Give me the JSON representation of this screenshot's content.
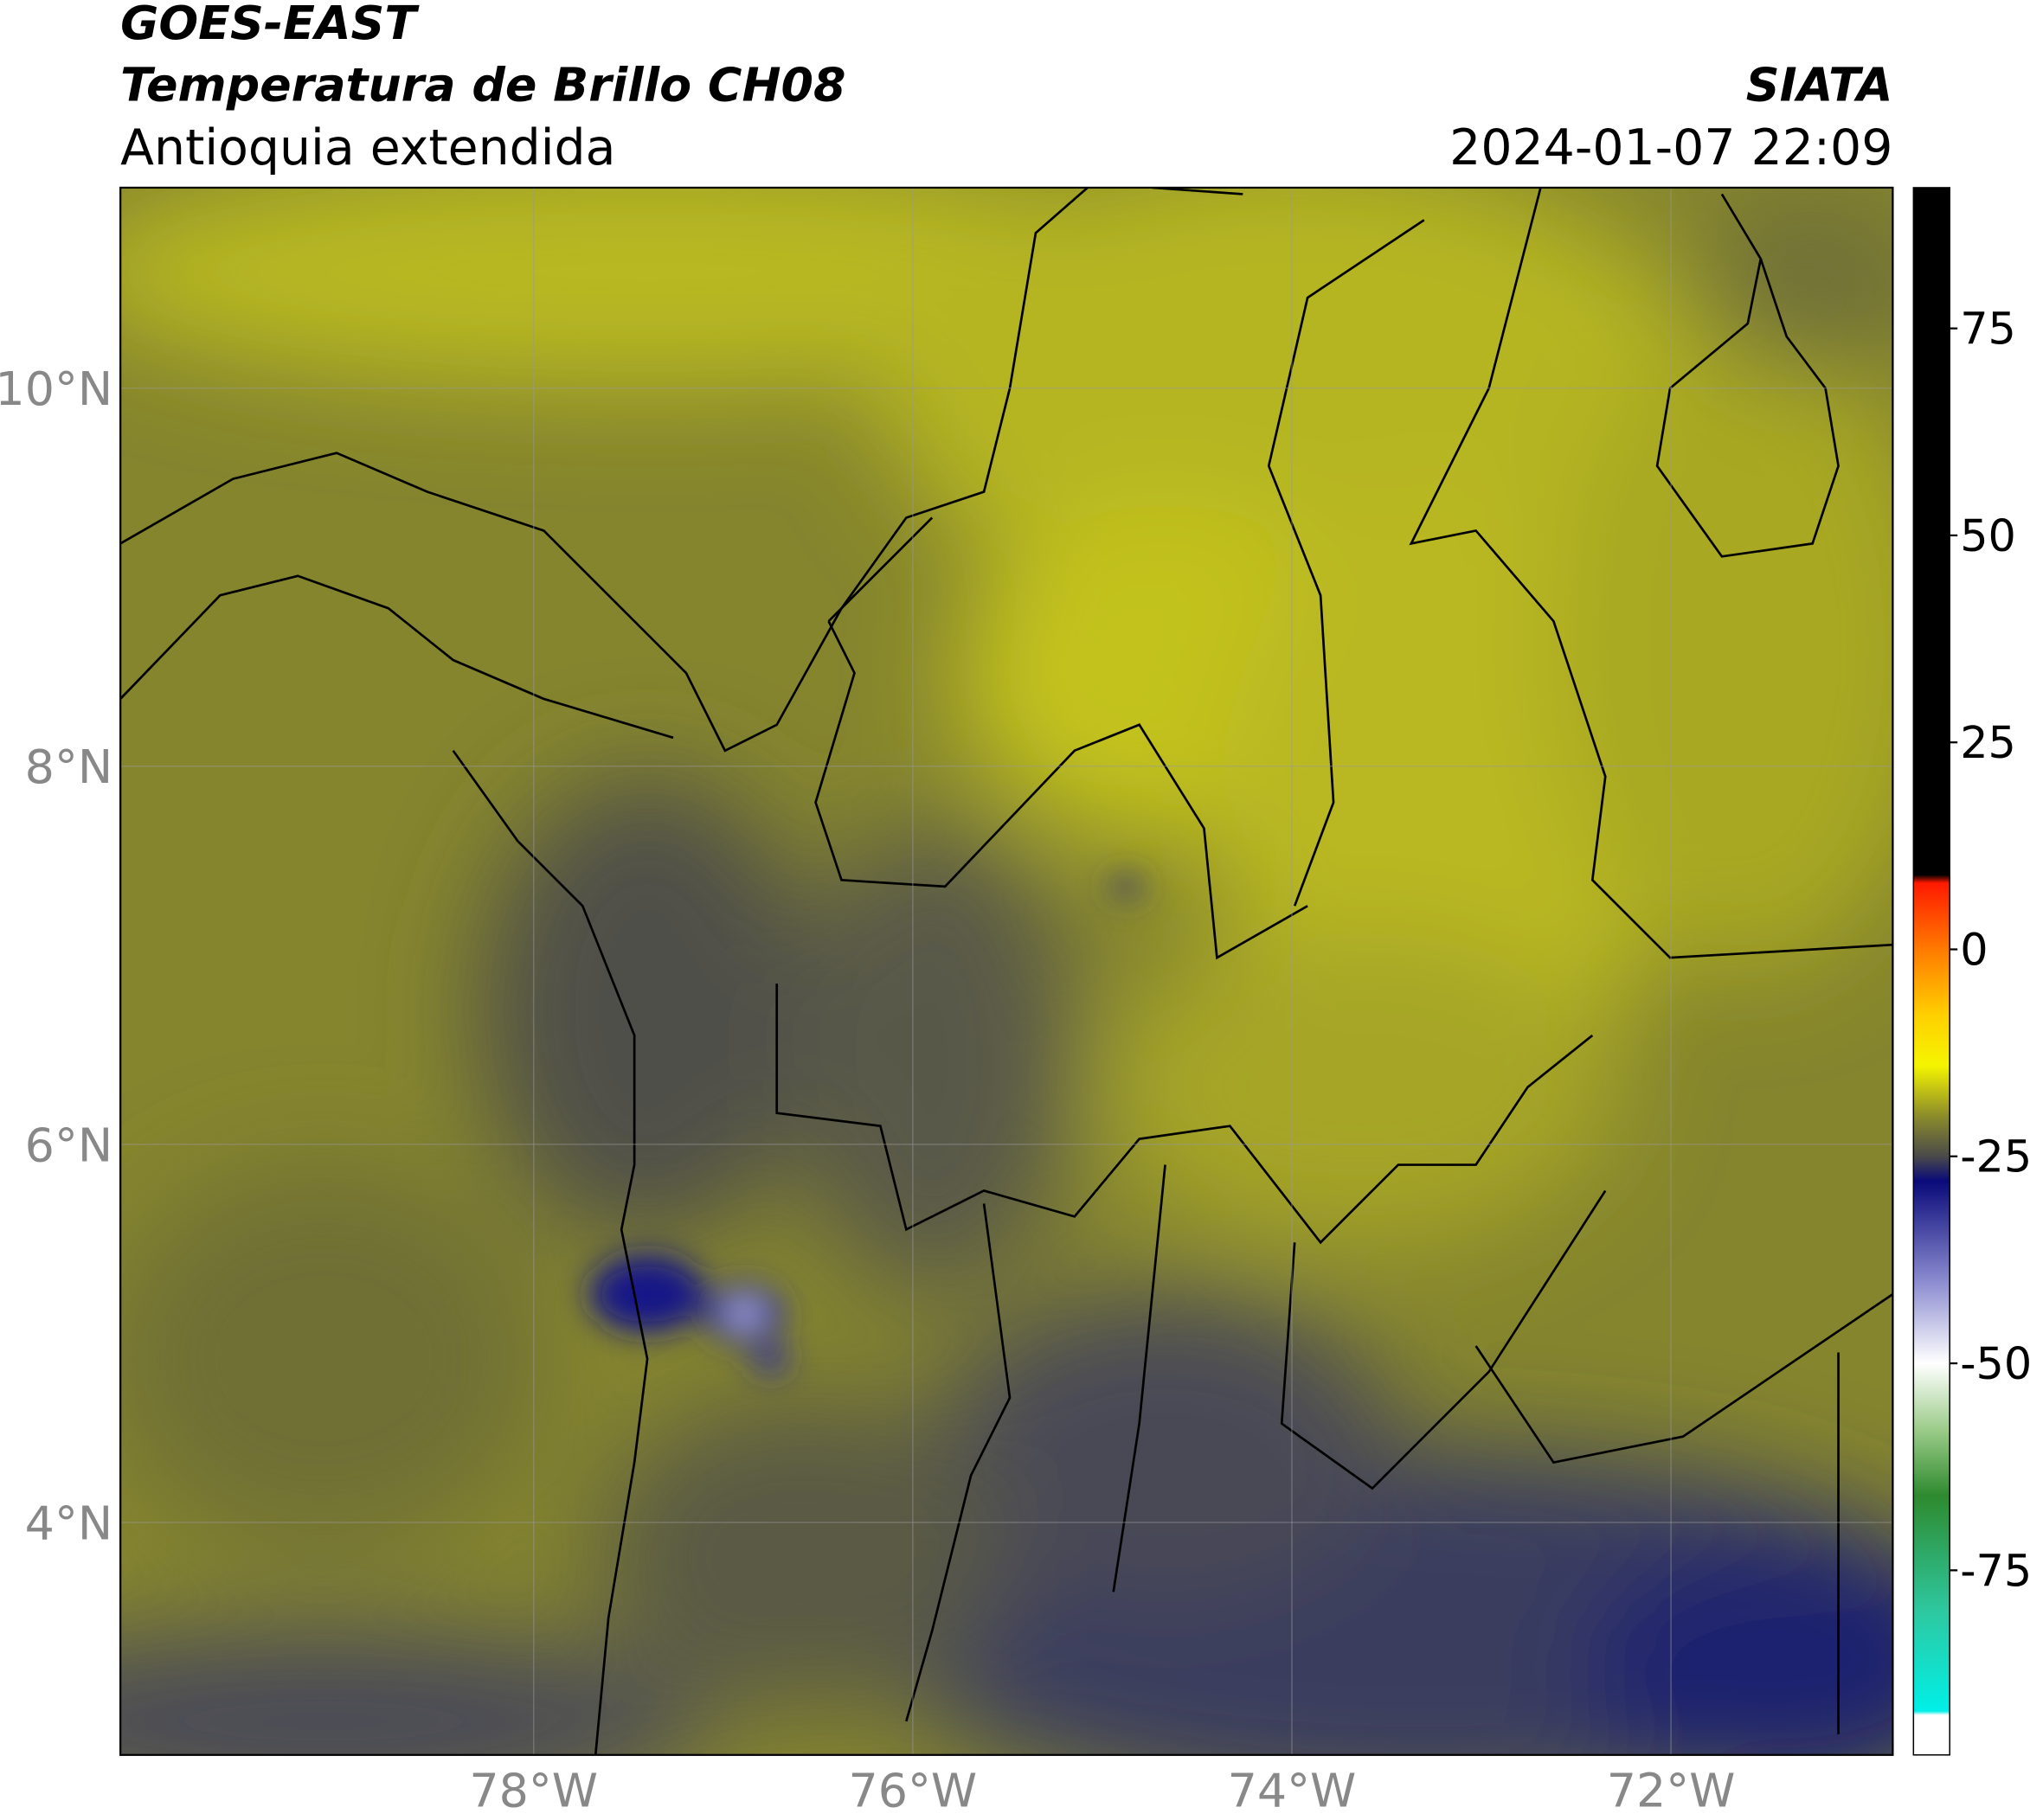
{
  "header": {
    "title": "GOES-EAST",
    "subtitle": "Temperatura de Brillo CH08",
    "region": "Antioquia extendida",
    "source": "SIATA",
    "datetime": "2024-01-07 22:09"
  },
  "map": {
    "xlim": [
      -80.18,
      -70.83
    ],
    "ylim": [
      2.77,
      11.06
    ],
    "xticks": [
      {
        "value": -78,
        "label": "78°W"
      },
      {
        "value": -76,
        "label": "76°W"
      },
      {
        "value": -74,
        "label": "74°W"
      },
      {
        "value": -72,
        "label": "72°W"
      }
    ],
    "yticks": [
      {
        "value": 4,
        "label": "4°N"
      },
      {
        "value": 6,
        "label": "6°N"
      },
      {
        "value": 8,
        "label": "8°N"
      },
      {
        "value": 10,
        "label": "10°N"
      }
    ]
  },
  "colorbar": {
    "lim": [
      -97.3,
      92
    ],
    "ticks": [
      75,
      50,
      25,
      0,
      -25,
      -50,
      -75
    ],
    "stops": [
      {
        "value": 92,
        "color": "#000000"
      },
      {
        "value": 9,
        "color": "#000000"
      },
      {
        "value": 8,
        "color": "#ff1a00"
      },
      {
        "value": 0,
        "color": "#ff7a00"
      },
      {
        "value": -8,
        "color": "#ffd000"
      },
      {
        "value": -14,
        "color": "#f5f500"
      },
      {
        "value": -20,
        "color": "#8e8e2a"
      },
      {
        "value": -25,
        "color": "#4a4a4a"
      },
      {
        "value": -28,
        "color": "#0a0a7a"
      },
      {
        "value": -40,
        "color": "#8a8ad0"
      },
      {
        "value": -50,
        "color": "#ffffff"
      },
      {
        "value": -58,
        "color": "#9ccc8a"
      },
      {
        "value": -66,
        "color": "#2e8a2e"
      },
      {
        "value": -80,
        "color": "#2ec8a0"
      },
      {
        "value": -92,
        "color": "#00f0e8"
      },
      {
        "value": -92.5,
        "color": "#ffffff"
      },
      {
        "value": -97.3,
        "color": "#ffffff"
      }
    ]
  }
}
